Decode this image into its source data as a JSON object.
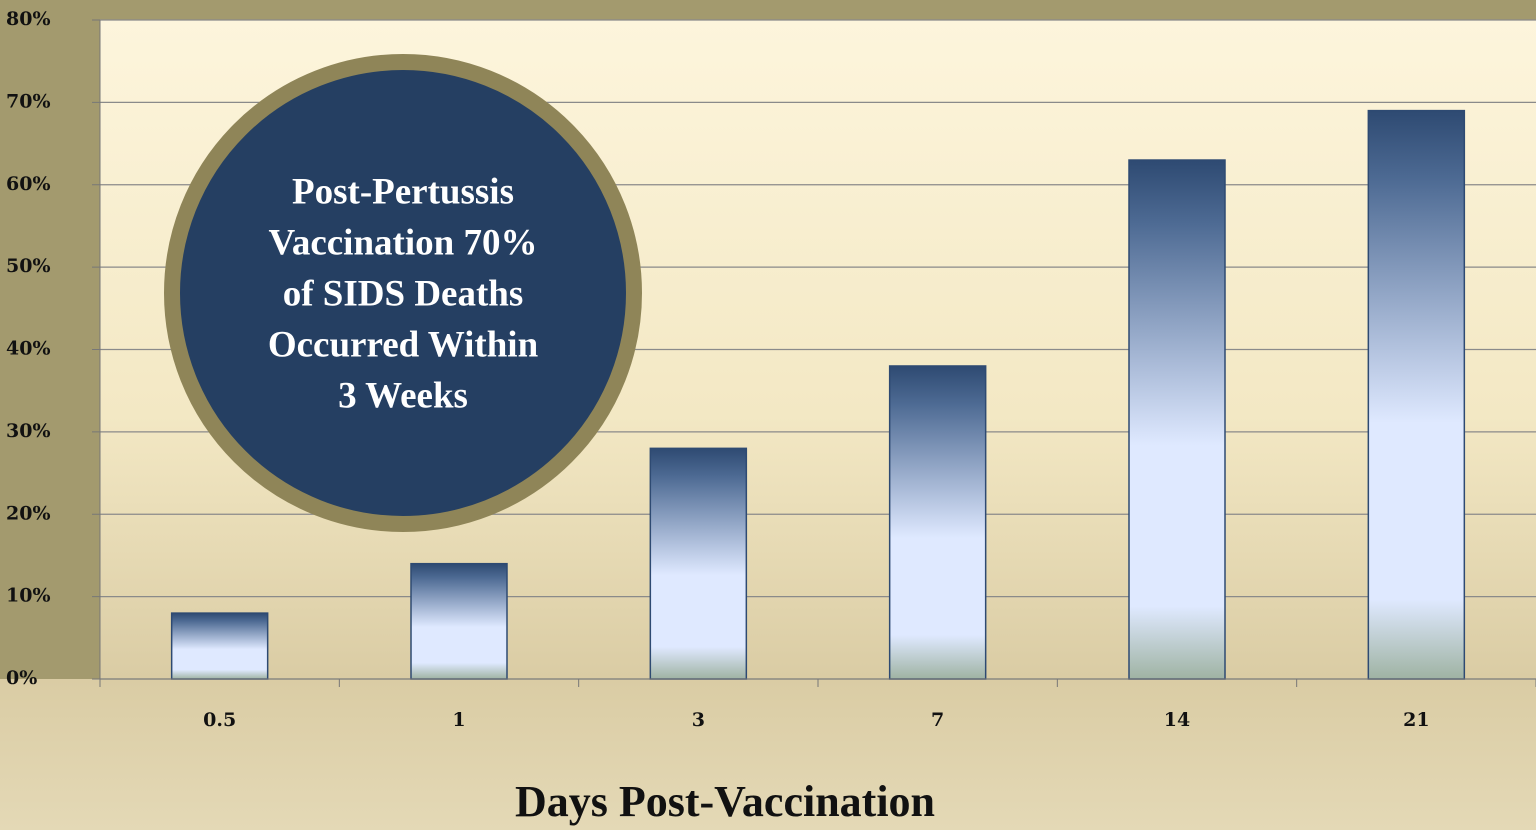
{
  "chart_data": {
    "type": "bar",
    "categories": [
      "0.5",
      "1",
      "3",
      "7",
      "14",
      "21"
    ],
    "values": [
      8,
      14,
      28,
      38,
      63,
      69
    ],
    "color": "#2e4a72",
    "ylim": [
      0,
      80
    ],
    "yticks": [
      {
        "value": 0,
        "label": "0%"
      },
      {
        "value": 10,
        "label": "10%"
      },
      {
        "value": 20,
        "label": "20%"
      },
      {
        "value": 30,
        "label": "30%"
      },
      {
        "value": 40,
        "label": "40%"
      },
      {
        "value": 50,
        "label": "50%"
      },
      {
        "value": 60,
        "label": "60%"
      },
      {
        "value": 70,
        "label": "70%"
      },
      {
        "value": 80,
        "label": "80%"
      }
    ],
    "grid": true,
    "xlabel": "Days Post-Vaccination",
    "annotation": [
      "Post-Pertussis",
      "Vaccination 70%",
      "of SIDS Deaths",
      "Occurred Within",
      "3 Weeks"
    ]
  }
}
